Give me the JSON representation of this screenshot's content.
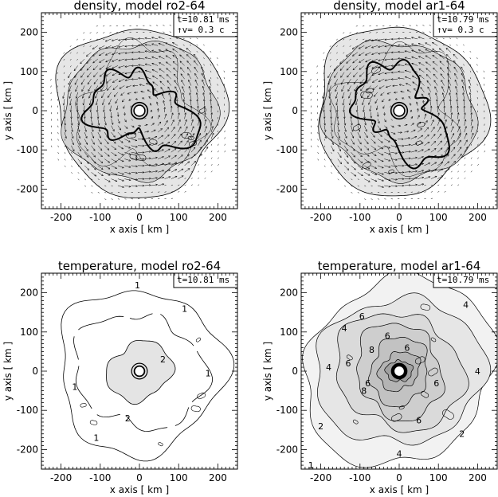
{
  "chart_data": [
    {
      "type": "contour",
      "title": "density, model ro2-64",
      "xlabel": "x axis [ km ]",
      "ylabel": "y axis [ km ]",
      "xlim": [
        -250,
        250
      ],
      "ylim": [
        -250,
        250
      ],
      "xticks": [
        -200,
        -100,
        0,
        100,
        200
      ],
      "yticks": [
        -200,
        -100,
        0,
        100,
        200
      ],
      "legend": [
        "t=10.81 ms",
        "↑v=  0.3 c"
      ],
      "has_velocity_vectors": true,
      "rotation": "counterclockwise",
      "contour_labels": []
    },
    {
      "type": "contour",
      "title": "density, model ar1-64",
      "xlabel": "x axis [ km ]",
      "ylabel": "y axis [ km ]",
      "xlim": [
        -250,
        250
      ],
      "ylim": [
        -250,
        250
      ],
      "xticks": [
        -200,
        -100,
        0,
        100,
        200
      ],
      "yticks": [
        -200,
        -100,
        0,
        100,
        200
      ],
      "legend": [
        "t=10.79 ms",
        "↑v=  0.3 c"
      ],
      "has_velocity_vectors": true,
      "rotation": "counterclockwise",
      "contour_labels": []
    },
    {
      "type": "contour",
      "title": "temperature, model ro2-64",
      "xlabel": "x axis [ km ]",
      "ylabel": "y axis [ km ]",
      "xlim": [
        -250,
        250
      ],
      "ylim": [
        -250,
        250
      ],
      "xticks": [
        -200,
        -100,
        0,
        100,
        200
      ],
      "yticks": [
        -200,
        -100,
        0,
        100,
        200
      ],
      "legend": [
        "t=10.81 ms"
      ],
      "has_velocity_vectors": false,
      "contour_labels": [
        {
          "text": "1",
          "x": -5,
          "y": 220
        },
        {
          "text": "1",
          "x": 115,
          "y": 160
        },
        {
          "text": "1",
          "x": 175,
          "y": -5
        },
        {
          "text": "1",
          "x": -165,
          "y": -40
        },
        {
          "text": "1",
          "x": -110,
          "y": -170
        },
        {
          "text": "2",
          "x": 60,
          "y": 30
        },
        {
          "text": "2",
          "x": -30,
          "y": -120
        }
      ]
    },
    {
      "type": "contour",
      "title": "temperature, model ar1-64",
      "xlabel": "x axis [ km ]",
      "ylabel": "y axis [ km ]",
      "xlim": [
        -250,
        250
      ],
      "ylim": [
        -250,
        250
      ],
      "xticks": [
        -200,
        -100,
        0,
        100,
        200
      ],
      "yticks": [
        -200,
        -100,
        0,
        100,
        200
      ],
      "legend": [
        "t=10.79 ms"
      ],
      "has_velocity_vectors": false,
      "contour_labels": [
        {
          "text": "4",
          "x": 170,
          "y": 170
        },
        {
          "text": "6",
          "x": -95,
          "y": 140
        },
        {
          "text": "4",
          "x": -140,
          "y": 110
        },
        {
          "text": "6",
          "x": -30,
          "y": 90
        },
        {
          "text": "6",
          "x": 20,
          "y": 60
        },
        {
          "text": "8",
          "x": -70,
          "y": 55
        },
        {
          "text": "6",
          "x": -130,
          "y": 20
        },
        {
          "text": "4",
          "x": -180,
          "y": 10
        },
        {
          "text": "6",
          "x": -80,
          "y": -30
        },
        {
          "text": "8",
          "x": -90,
          "y": -50
        },
        {
          "text": "6",
          "x": 95,
          "y": -30
        },
        {
          "text": "4",
          "x": 200,
          "y": 0
        },
        {
          "text": "6",
          "x": 50,
          "y": -125
        },
        {
          "text": "2",
          "x": -200,
          "y": -140
        },
        {
          "text": "2",
          "x": 160,
          "y": -160
        },
        {
          "text": "4",
          "x": 0,
          "y": -210
        },
        {
          "text": "1",
          "x": -225,
          "y": -240
        }
      ]
    }
  ]
}
